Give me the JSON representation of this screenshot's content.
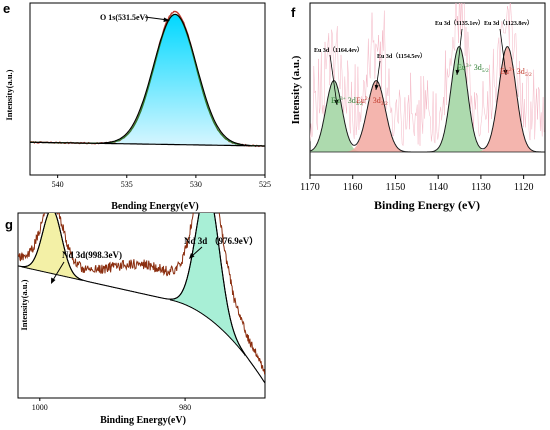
{
  "chart_data": [
    {
      "panel": "e",
      "type": "line",
      "xlabel": "Bending Energy(eV)",
      "ylabel": "Intensity(a.u.)",
      "xlim": [
        542,
        525
      ],
      "xticks": [
        540,
        535,
        530,
        525
      ],
      "x_reversed": true,
      "y_ticks_shown": false,
      "annotations": [
        {
          "text": "O 1s(531.5eV)",
          "x": 531.5
        }
      ],
      "peaks": [
        {
          "center": 531.5,
          "height": 0.93,
          "sigma": 1.5,
          "fill": "cyan"
        }
      ],
      "series": [
        {
          "role": "measured",
          "color": "#c0392b"
        },
        {
          "role": "fit-envelope",
          "color": "#2e7d32"
        },
        {
          "role": "background",
          "color": "#000000"
        }
      ],
      "colors": {
        "peak_fill_top": "#00d8ff",
        "peak_fill_bottom": "#d7f6ff"
      }
    },
    {
      "panel": "f",
      "type": "line",
      "xlabel": "Binding Energy (eV)",
      "ylabel": "Intensity (a.u.)",
      "xlim": [
        1170,
        1115
      ],
      "xticks": [
        1170,
        1160,
        1150,
        1140,
        1130,
        1120
      ],
      "x_reversed": true,
      "y_ticks_shown": false,
      "peaks": [
        {
          "center": 1164.4,
          "height": 0.42,
          "sigma": 1.9,
          "fill": "#9fd4a0",
          "label": "Eu 3d（1164.4ev）",
          "assignment_prefix": "Eu",
          "assignment_sup": "3+",
          "assignment_mid": " 3d",
          "assignment_sub": "3/2",
          "assign_color": "#2e7d32"
        },
        {
          "center": 1154.5,
          "height": 0.42,
          "sigma": 2.1,
          "fill": "#f2a8a0",
          "label": "Eu 3d（1154.5ev）",
          "assignment_prefix": "Eu",
          "assignment_sup": "2+",
          "assignment_mid": " 3d",
          "assignment_sub": "3/2",
          "assign_color": "#c0392b"
        },
        {
          "center": 1135.1,
          "height": 0.62,
          "sigma": 1.9,
          "fill": "#9fd4a0",
          "label": "Eu 3d（1135.1ev）",
          "assignment_prefix": "Eu",
          "assignment_sup": "3+",
          "assignment_mid": " 3d",
          "assignment_sub": "5/2",
          "assign_color": "#2e7d32"
        },
        {
          "center": 1123.8,
          "height": 0.62,
          "sigma": 2.0,
          "fill": "#f2a8a0",
          "label": "Eu 3d（1123.8ev）",
          "assignment_prefix": "Eu",
          "assignment_sup": "2+",
          "assignment_mid": " 3d",
          "assignment_sub": "5/2",
          "assign_color": "#c0392b"
        }
      ],
      "colors": {
        "noise": "#f4b6c4"
      }
    },
    {
      "panel": "g",
      "type": "line",
      "xlabel": "Binding Energy(eV)",
      "ylabel": "Intensity(a.u.)",
      "xlim": [
        1003,
        969
      ],
      "xticks": [
        1000,
        980
      ],
      "x_reversed": true,
      "y_ticks_shown": false,
      "annotations": [
        {
          "text": "Nd 3d(998.3eV)",
          "x": 998.3
        },
        {
          "text": "Nd 3d （976.9eV）",
          "x": 976.9
        }
      ],
      "peaks": [
        {
          "center": 998.3,
          "height": 0.43,
          "sigma": 1.3,
          "fill": "#f3f0a6"
        },
        {
          "center": 976.9,
          "height": 0.86,
          "sigma": 1.6,
          "fill": "#a8efd6"
        }
      ],
      "series": [
        {
          "role": "measured",
          "color": "#8b2e0f"
        },
        {
          "role": "envelope",
          "color": "#000000"
        }
      ]
    }
  ]
}
